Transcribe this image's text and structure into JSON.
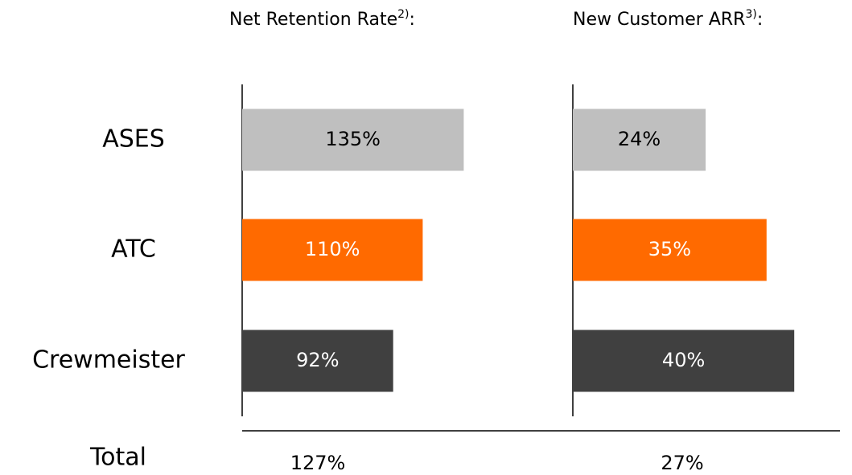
{
  "chart_data": {
    "type": "bar",
    "categories": [
      "ASES",
      "ATC",
      "Crewmeister"
    ],
    "total_label": "Total",
    "colors": [
      "#bfbfbf",
      "#ff6a00",
      "#404040"
    ],
    "panels": [
      {
        "title": "Net Retention Rate",
        "footnote": "2)",
        "title_end": ":",
        "values": [
          135,
          110,
          92
        ],
        "value_labels": [
          "135%",
          "110%",
          "92%"
        ],
        "xlim": [
          0,
          150
        ],
        "total": 127,
        "total_label": "127%"
      },
      {
        "title": "New Customer ARR",
        "footnote": "3)",
        "title_end": ":",
        "values": [
          24,
          35,
          40
        ],
        "value_labels": [
          "24%",
          "35%",
          "40%"
        ],
        "xlim": [
          0,
          50
        ],
        "total": 27,
        "total_label": "27%"
      }
    ]
  }
}
